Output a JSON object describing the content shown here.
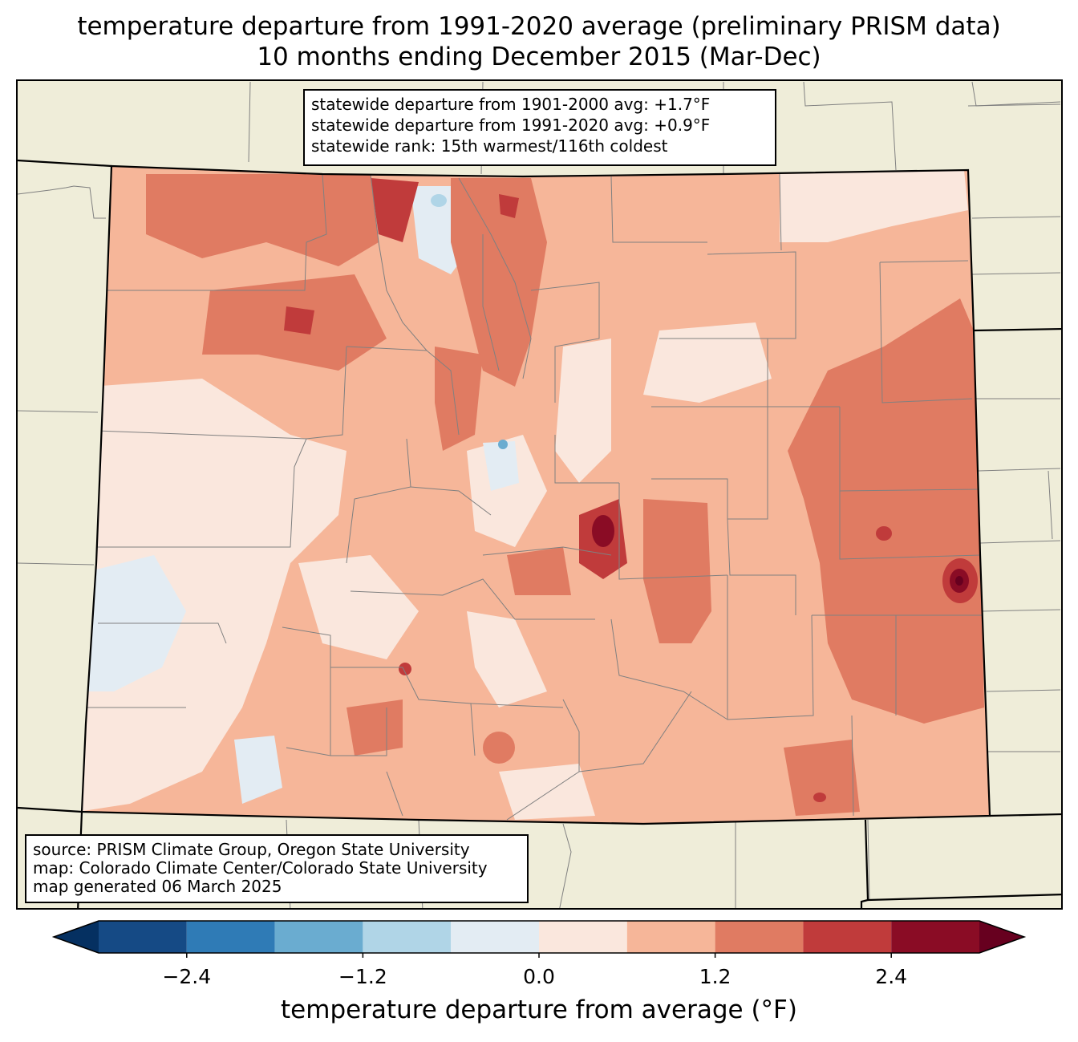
{
  "title": {
    "line1": "temperature departure from 1991-2020 average (preliminary PRISM data)",
    "line2": "10 months ending December 2015 (Mar-Dec)"
  },
  "stats": {
    "line1": "statewide departure from 1901-2000 avg: +1.7°F",
    "line2": "statewide departure from 1991-2020 avg: +0.9°F",
    "line3": "statewide rank: 15th warmest/116th coldest"
  },
  "source": {
    "line1": "source: PRISM Climate Group, Oregon State University",
    "line2": "map: Colorado Climate Center/Colorado State University",
    "line3": "map generated 06 March 2025"
  },
  "colorbar": {
    "label": "temperature departure from average (°F)",
    "bins": [
      -3.0,
      -2.4,
      -1.8,
      -1.2,
      -0.6,
      0.0,
      0.6,
      1.2,
      1.8,
      2.4,
      3.0
    ],
    "colors": [
      "#053061",
      "#154a85",
      "#2f7bb6",
      "#6aacd0",
      "#b0d5e7",
      "#e3ecf3",
      "#fae7dd",
      "#f6b699",
      "#e07b62",
      "#c03b3b",
      "#8a0c25",
      "#67001f"
    ],
    "tick_values": [
      -2.4,
      -1.2,
      0.0,
      1.2,
      2.4
    ],
    "tick_labels": [
      "−2.4",
      "−1.2",
      "0.0",
      "1.2",
      "2.4"
    ],
    "extend": "both"
  },
  "map_colors": {
    "background": "#efedd9",
    "state_fill": "#f6b699",
    "county_lines": "#808080",
    "state_border": "#000000"
  }
}
